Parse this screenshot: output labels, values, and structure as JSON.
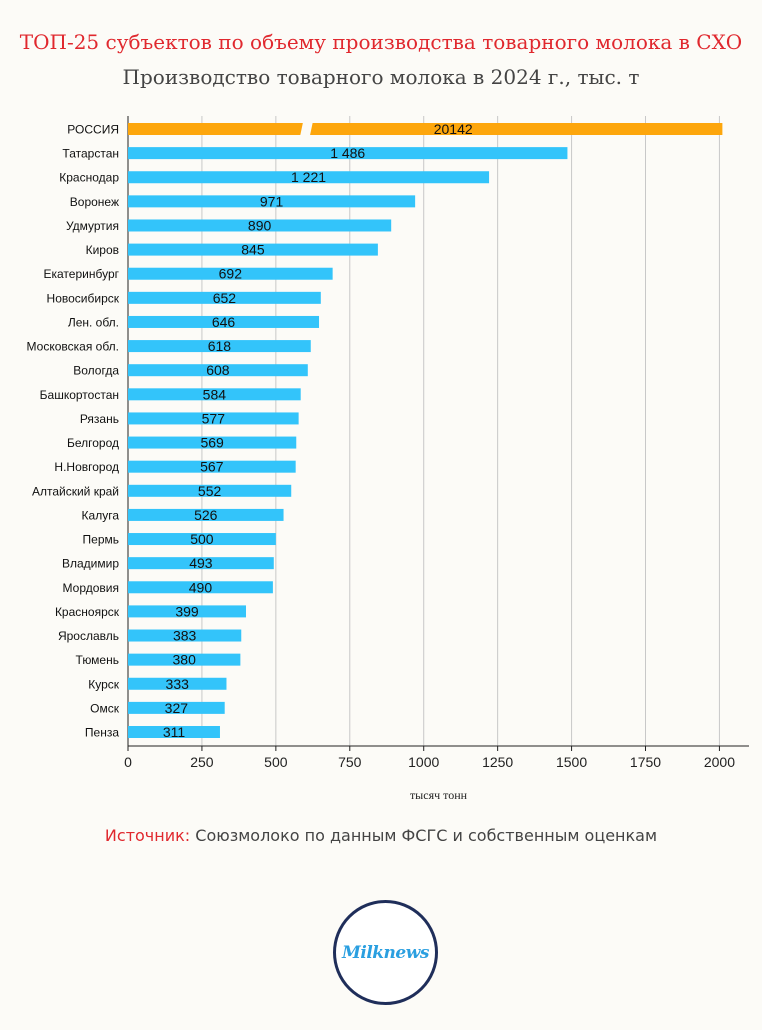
{
  "header": {
    "title": "ТОП-25 субъектов по объему производства товарного молока в СХО",
    "subtitle": "Производство товарного молока в 2024 г., тыс. т"
  },
  "footer": {
    "source_label": "Источник:",
    "source_text": "Союзмолоко по данным ФСГС и собственным оценкам",
    "logo_text": "Milknews"
  },
  "colors": {
    "bar": "#33c4fa",
    "highlight": "#fda60c",
    "grid": "#c8c8c8",
    "axis": "#222222"
  },
  "chart_data": {
    "type": "bar",
    "orientation": "horizontal",
    "categories": [
      "РОССИЯ",
      "Татарстан",
      "Краснодар",
      "Воронеж",
      "Удмуртия",
      "Киров",
      "Екатеринбург",
      "Новосибирск",
      "Лен. обл.",
      "Московская обл.",
      "Вологда",
      "Башкортостан",
      "Рязань",
      "Белгород",
      "Н.Новгород",
      "Алтайский край",
      "Калуга",
      "Пермь",
      "Владимир",
      "Мордовия",
      "Красноярск",
      "Ярославль",
      "Тюмень",
      "Курск",
      "Омск",
      "Пенза"
    ],
    "values": [
      20142,
      1486,
      1221,
      971,
      890,
      845,
      692,
      652,
      646,
      618,
      608,
      584,
      577,
      569,
      567,
      552,
      526,
      500,
      493,
      490,
      399,
      383,
      380,
      333,
      327,
      311
    ],
    "value_labels": [
      "20142",
      "1 486",
      "1 221",
      "971",
      "890",
      "845",
      "692",
      "652",
      "646",
      "618",
      "608",
      "584",
      "577",
      "569",
      "567",
      "552",
      "526",
      "500",
      "493",
      "490",
      "399",
      "383",
      "380",
      "333",
      "327",
      "311"
    ],
    "xlim": [
      0,
      2100
    ],
    "xticks": [
      0,
      250,
      500,
      750,
      1000,
      1250,
      1500,
      1750,
      2000
    ],
    "xlabel": "тысяч тонн",
    "ylabel": "",
    "grid": true,
    "highlight_category": "РОССИЯ",
    "axis_break": true
  }
}
